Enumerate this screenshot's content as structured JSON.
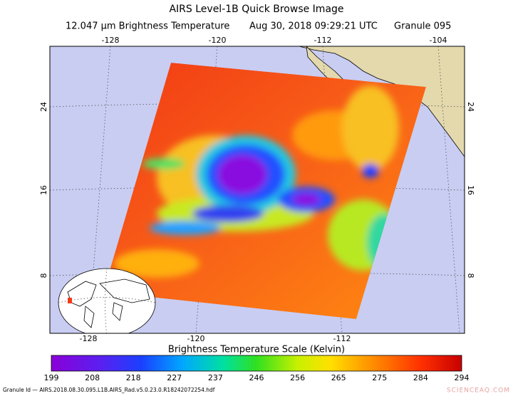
{
  "header": {
    "title": "AIRS Level-1B Quick Browse Image",
    "subtitle": [
      "12.047 μm Brightness Temperature",
      "Aug 30, 2018 09:29:21 UTC",
      "Granule 095"
    ]
  },
  "map": {
    "top_lon_labels": [
      "-128",
      "-120",
      "-112",
      "-104"
    ],
    "bottom_lon_labels": [
      "-128",
      "-120",
      "-112"
    ],
    "left_lat_labels": [
      "24",
      "16",
      "8"
    ],
    "right_lat_labels": [
      "24",
      "16",
      "8"
    ]
  },
  "colorbar": {
    "title": "Brightness Temperature Scale (Kelvin)",
    "ticks": [
      199,
      208,
      218,
      227,
      237,
      246,
      256,
      265,
      275,
      284,
      294
    ]
  },
  "footer": {
    "granule_id": "Granule Id — AIRS.2018.08.30.095.L1B.AIRS_Rad.v5.0.23.0.R18242072254.hdf",
    "watermark": "SCIENCEAQ.COM"
  }
}
